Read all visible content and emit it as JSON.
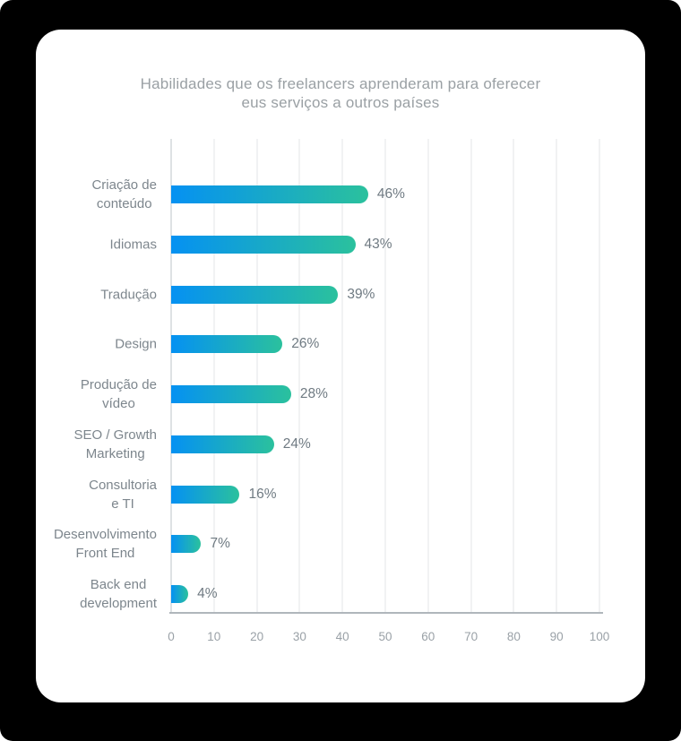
{
  "title": {
    "line1": "Habilidades que os freelancers aprenderam para oferecer",
    "line2": "eus serviços a outros países"
  },
  "chart_data": {
    "type": "bar",
    "orientation": "horizontal",
    "title": "Habilidades que os freelancers aprenderam para oferecer eus serviços a outros países",
    "categories": [
      "Criação de\nconteúdo",
      "Idiomas",
      "Tradução",
      "Design",
      "Produção de\nvídeo",
      "SEO / Growth\nMarketing",
      "Consultoria\ne TI",
      "Desenvolvimento\nFront End",
      "Back end\ndevelopment"
    ],
    "values": [
      46,
      43,
      39,
      26,
      28,
      24,
      16,
      7,
      4
    ],
    "value_labels": [
      "46%",
      "43%",
      "39%",
      "26%",
      "28%",
      "24%",
      "16%",
      "7%",
      "4%"
    ],
    "value_suffix": "%",
    "xlim": [
      0,
      100
    ],
    "x_ticks": [
      0,
      10,
      20,
      30,
      40,
      50,
      60,
      70,
      80,
      90,
      100
    ],
    "grid": "vertical",
    "legend": "none"
  },
  "colors": {
    "background": "#000000",
    "card": "#ffffff",
    "title_text": "#9aa0a4",
    "label_text": "#7d868d",
    "value_text": "#6f7a82",
    "tick_text": "#9aa1a7",
    "axis_line": "#b0b6bb",
    "grid_line": "#f1f2f3",
    "zero_line": "#dee2e4",
    "bar_gradient_start": "#0591F2",
    "bar_gradient_end": "#2BC19D"
  }
}
